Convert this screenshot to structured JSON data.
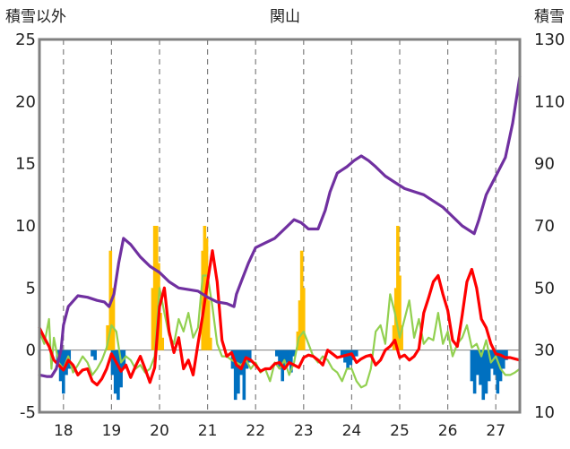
{
  "chart_data": {
    "type": "bar+line",
    "title": "関山",
    "left_axis_label": "積雪以外",
    "right_axis_label": "積雪",
    "x_ticks": [
      "18",
      "19",
      "20",
      "21",
      "22",
      "23",
      "24",
      "25",
      "26",
      "27"
    ],
    "x_range": [
      17.5,
      27.5
    ],
    "left_ylim": [
      -5,
      25
    ],
    "left_yticks": [
      -5,
      0,
      5,
      10,
      15,
      20,
      25
    ],
    "right_ylim": [
      10,
      130
    ],
    "right_yticks": [
      10,
      30,
      50,
      70,
      90,
      110,
      130
    ],
    "grid": "vertical dashed at each day",
    "legend": "none",
    "colors": {
      "snow_depth": "#7030A0",
      "temperature": "#FF0000",
      "green_series": "#92D050",
      "precip_bars": "#FFC000",
      "negative_bars": "#0070C0",
      "axes": "#808080"
    },
    "series": [
      {
        "axis": "right",
        "color": "#7030A0",
        "x": [
          17.5,
          17.65,
          17.75,
          17.85,
          17.95,
          18.0,
          18.1,
          18.3,
          18.5,
          18.7,
          18.85,
          18.95,
          19.05,
          19.15,
          19.25,
          19.4,
          19.6,
          19.8,
          20.0,
          20.2,
          20.4,
          20.6,
          20.8,
          21.0,
          21.2,
          21.4,
          21.55,
          21.6,
          21.7,
          21.85,
          22.0,
          22.2,
          22.4,
          22.6,
          22.8,
          22.95,
          23.1,
          23.3,
          23.45,
          23.55,
          23.7,
          23.9,
          24.05,
          24.2,
          24.35,
          24.5,
          24.7,
          24.9,
          25.1,
          25.3,
          25.5,
          25.7,
          25.9,
          26.1,
          26.3,
          26.5,
          26.55,
          26.65,
          26.8,
          27.0,
          27.2,
          27.35,
          27.5
        ],
        "values": [
          22,
          21.5,
          21.5,
          24,
          30,
          38,
          44,
          47.5,
          47,
          46,
          45.5,
          44,
          48,
          58,
          66,
          64,
          60,
          57,
          55,
          52,
          50,
          49.5,
          49,
          47,
          45.5,
          45,
          44,
          48,
          52,
          58,
          63,
          64.5,
          66,
          69,
          72,
          71,
          69,
          69,
          75,
          81,
          87,
          89,
          91,
          92.5,
          91,
          89,
          86,
          84,
          82,
          81,
          80,
          78,
          76,
          73,
          70,
          68,
          67.5,
          72,
          80,
          86,
          92,
          103,
          118
        ]
      },
      {
        "axis": "left",
        "color": "#FF0000",
        "x": [
          17.5,
          17.6,
          17.7,
          17.8,
          17.9,
          18.0,
          18.1,
          18.2,
          18.3,
          18.4,
          18.5,
          18.6,
          18.7,
          18.8,
          18.9,
          19.0,
          19.1,
          19.2,
          19.3,
          19.4,
          19.5,
          19.6,
          19.7,
          19.8,
          19.9,
          20.0,
          20.1,
          20.2,
          20.3,
          20.4,
          20.5,
          20.6,
          20.7,
          20.8,
          20.9,
          21.0,
          21.1,
          21.2,
          21.3,
          21.4,
          21.5,
          21.6,
          21.7,
          21.8,
          21.9,
          22.0,
          22.1,
          22.2,
          22.3,
          22.4,
          22.5,
          22.6,
          22.7,
          22.8,
          22.9,
          23.0,
          23.1,
          23.2,
          23.3,
          23.4,
          23.5,
          23.6,
          23.7,
          23.8,
          23.9,
          24.0,
          24.1,
          24.2,
          24.3,
          24.4,
          24.5,
          24.6,
          24.7,
          24.8,
          24.9,
          25.0,
          25.1,
          25.2,
          25.3,
          25.4,
          25.5,
          25.6,
          25.7,
          25.8,
          25.9,
          26.0,
          26.1,
          26.2,
          26.3,
          26.4,
          26.5,
          26.6,
          26.7,
          26.8,
          26.9,
          27.0,
          27.1,
          27.2,
          27.3,
          27.4,
          27.5
        ],
        "values": [
          1.8,
          1.0,
          0.3,
          -0.8,
          -1.2,
          -1.6,
          -0.8,
          -1.2,
          -2.0,
          -1.6,
          -1.5,
          -2.5,
          -2.8,
          -2.3,
          -1.5,
          -0.3,
          -1.0,
          -1.7,
          -1.2,
          -2.2,
          -1.3,
          -0.5,
          -1.5,
          -2.6,
          -1.4,
          3.5,
          5.0,
          1.5,
          -0.2,
          1.0,
          -1.5,
          -0.8,
          -2.0,
          0.5,
          2.8,
          5.5,
          8.0,
          5.5,
          0.8,
          -0.5,
          -0.2,
          -1.2,
          -1.5,
          -0.6,
          -0.8,
          -1.2,
          -1.7,
          -1.5,
          -1.5,
          -1.1,
          -1.0,
          -1.5,
          -1.0,
          -1.2,
          -1.4,
          -0.6,
          -0.4,
          -0.5,
          -0.8,
          -1.2,
          0.0,
          -0.3,
          -0.6,
          -0.5,
          -0.4,
          -0.3,
          -1.0,
          -0.7,
          -0.5,
          -0.4,
          -1.2,
          -0.8,
          0.0,
          0.3,
          0.8,
          -0.6,
          -0.4,
          -0.8,
          -0.5,
          0.1,
          3.0,
          4.2,
          5.5,
          6.0,
          4.5,
          3.2,
          0.8,
          0.3,
          2.8,
          5.5,
          6.5,
          5.0,
          2.5,
          1.8,
          0.5,
          -0.3,
          -0.4,
          -0.6,
          -0.6,
          -0.7,
          -0.8
        ]
      },
      {
        "axis": "left",
        "color": "#92D050",
        "x": [
          17.5,
          17.6,
          17.7,
          17.75,
          17.8,
          17.9,
          18.0,
          18.1,
          18.2,
          18.3,
          18.4,
          18.5,
          18.6,
          18.7,
          18.8,
          18.9,
          19.0,
          19.1,
          19.2,
          19.3,
          19.4,
          19.5,
          19.6,
          19.7,
          19.8,
          19.9,
          20.0,
          20.1,
          20.2,
          20.3,
          20.4,
          20.5,
          20.6,
          20.7,
          20.8,
          20.9,
          21.0,
          21.1,
          21.2,
          21.3,
          21.4,
          21.5,
          21.6,
          21.7,
          21.8,
          21.9,
          22.0,
          22.1,
          22.2,
          22.3,
          22.4,
          22.5,
          22.6,
          22.7,
          22.8,
          22.9,
          23.0,
          23.1,
          23.2,
          23.3,
          23.4,
          23.5,
          23.6,
          23.7,
          23.8,
          23.9,
          24.0,
          24.1,
          24.2,
          24.3,
          24.4,
          24.5,
          24.6,
          24.7,
          24.8,
          24.9,
          25.0,
          25.1,
          25.2,
          25.3,
          25.4,
          25.5,
          25.6,
          25.7,
          25.8,
          25.9,
          26.0,
          26.1,
          26.2,
          26.3,
          26.4,
          26.5,
          26.6,
          26.7,
          26.8,
          26.9,
          27.0,
          27.1,
          27.2,
          27.3,
          27.4,
          27.5
        ],
        "values": [
          1.5,
          0.5,
          2.5,
          -1.5,
          1.0,
          -1.0,
          -1.5,
          -0.5,
          -1.8,
          -1.2,
          -0.5,
          -1.0,
          -2.0,
          -1.5,
          -0.8,
          0.2,
          2.0,
          1.5,
          -1.0,
          -0.5,
          -0.8,
          -1.5,
          -1.2,
          -1.8,
          -1.5,
          -0.5,
          5.0,
          3.0,
          1.2,
          0.5,
          2.5,
          1.5,
          3.0,
          1.0,
          1.8,
          6.0,
          6.0,
          3.5,
          0.5,
          -0.5,
          -0.5,
          -0.8,
          -1.0,
          -1.2,
          -0.8,
          -1.5,
          -1.0,
          -1.8,
          -1.5,
          -2.5,
          -1.0,
          -1.5,
          -0.8,
          -2.0,
          -1.0,
          1.0,
          1.5,
          0.5,
          -0.5,
          -1.0,
          -0.5,
          -0.8,
          -1.5,
          -1.8,
          -2.5,
          -1.5,
          -1.5,
          -2.5,
          -3.0,
          -2.8,
          -1.5,
          1.5,
          2.0,
          0.5,
          4.5,
          3.0,
          1.0,
          2.5,
          4.0,
          1.0,
          2.5,
          0.5,
          1.0,
          0.8,
          3.0,
          0.5,
          1.5,
          -0.5,
          0.5,
          1.0,
          2.0,
          0.2,
          0.5,
          -0.5,
          0.8,
          -1.0,
          -0.5,
          -1.5,
          -2.0,
          -2.0,
          -1.8,
          -1.5
        ]
      }
    ],
    "bars_positive": {
      "axis": "left",
      "color": "#FFC000",
      "x": [
        18.92,
        18.98,
        19.04,
        19.86,
        19.9,
        19.94,
        19.98,
        20.02,
        20.06,
        20.9,
        20.94,
        20.98,
        21.02,
        21.06,
        22.88,
        22.92,
        22.96,
        23.0,
        24.88,
        24.92,
        24.96,
        25.0,
        25.04
      ],
      "values": [
        2.0,
        8.0,
        5.0,
        5.0,
        10.0,
        10.0,
        7.0,
        3.0,
        1.0,
        8.0,
        10.0,
        9.0,
        4.0,
        1.0,
        1.5,
        4.0,
        8.0,
        5.0,
        2.0,
        5.0,
        10.0,
        6.0,
        2.0
      ]
    },
    "bars_negative": {
      "axis": "left",
      "color": "#0070C0",
      "x": [
        17.88,
        17.94,
        18.0,
        18.06,
        18.12,
        18.6,
        18.66,
        19.02,
        19.08,
        19.14,
        19.2,
        19.26,
        21.52,
        21.58,
        21.64,
        21.7,
        21.76,
        21.82,
        21.88,
        22.44,
        22.5,
        22.56,
        22.62,
        22.68,
        22.74,
        22.8,
        23.8,
        23.86,
        23.92,
        23.98,
        24.04,
        24.1,
        26.5,
        26.56,
        26.62,
        26.68,
        26.74,
        26.8,
        26.86,
        26.92,
        26.98,
        27.04,
        27.1,
        27.16,
        27.22
      ],
      "values": [
        -1.0,
        -2.5,
        -3.5,
        -2.0,
        -1.5,
        -0.5,
        -0.8,
        -2.0,
        -3.5,
        -4.0,
        -3.0,
        -1.5,
        -1.5,
        -4.0,
        -3.5,
        -2.0,
        -4.0,
        -1.5,
        -1.0,
        -0.5,
        -1.5,
        -2.5,
        -1.5,
        -1.0,
        -1.8,
        -0.5,
        -0.5,
        -1.0,
        -1.5,
        -1.2,
        -0.8,
        -0.5,
        -2.5,
        -3.5,
        -2.0,
        -2.8,
        -4.0,
        -3.5,
        -2.5,
        -1.5,
        -2.0,
        -3.5,
        -2.5,
        -1.5,
        -0.8
      ]
    }
  }
}
